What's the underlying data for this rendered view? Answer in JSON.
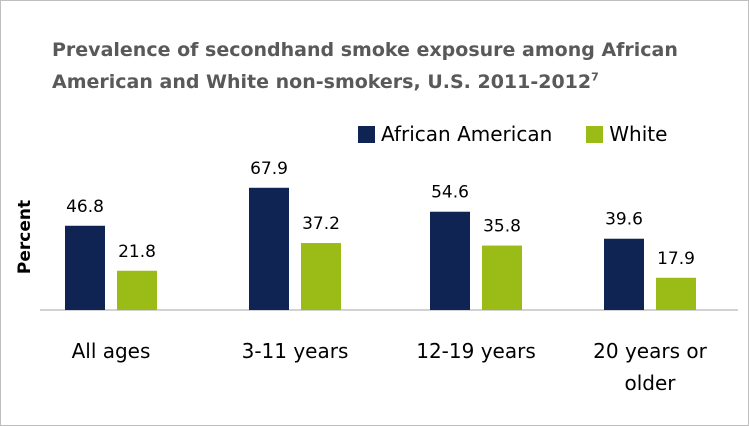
{
  "chart_data": {
    "type": "bar",
    "title": "Prevalence of secondhand smoke exposure among African American and White non-smokers, U.S. 2011-2012",
    "title_superscript": "7",
    "ylabel": "Percent",
    "xlabel": "",
    "categories": [
      "All ages",
      "3-11 years",
      "12-19 years",
      "20 years or older"
    ],
    "series": [
      {
        "name": "African American",
        "color": "#0f2452",
        "values": [
          46.8,
          67.9,
          54.6,
          39.6
        ]
      },
      {
        "name": "White",
        "color": "#9bbb16",
        "values": [
          21.8,
          37.2,
          35.8,
          17.9
        ]
      }
    ],
    "ylim": [
      0,
      80
    ],
    "grid": false,
    "legend_position": "top-right",
    "data_labels": true
  }
}
